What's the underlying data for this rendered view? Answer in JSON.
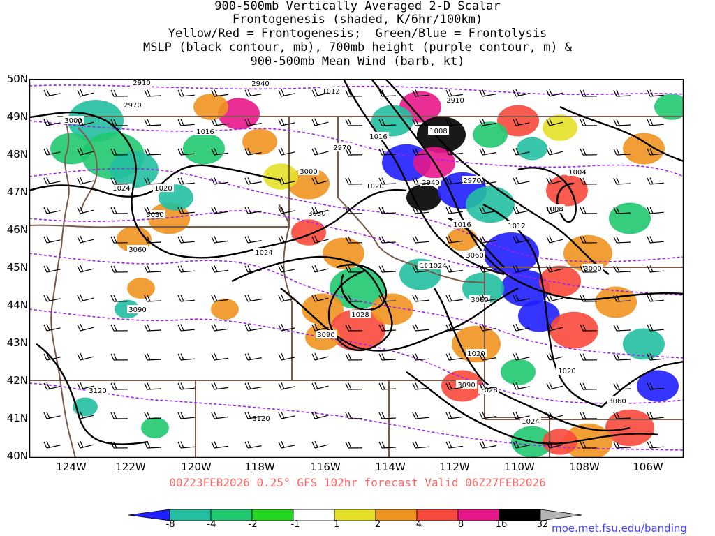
{
  "title": {
    "line1": "900-500mb Vertically Averaged 2-D Scalar",
    "line2": "Frontogenesis (shaded, K/6hr/100km)",
    "line3": "Yellow/Red = Frontogenesis;  Green/Blue = Frontolysis",
    "line4": "MSLP (black contour, mb), 700mb height (purple contour, m) &",
    "line5": "900-500mb Mean Wind (barb, kt)"
  },
  "footer": "00Z23FEB2026 0.25° GFS 102hr forecast Valid 06Z27FEB2026",
  "site": "moe.met.fsu.edu/banding",
  "lat_labels": [
    "50N",
    "49N",
    "48N",
    "47N",
    "46N",
    "45N",
    "44N",
    "43N",
    "42N",
    "41N",
    "40N"
  ],
  "lon_labels": [
    "124W",
    "122W",
    "120W",
    "118W",
    "116W",
    "114W",
    "112W",
    "110W",
    "108W",
    "106W"
  ],
  "colorbar": {
    "labels": [
      "-8",
      "-4",
      "-2",
      "-1",
      "1",
      "2",
      "4",
      "8",
      "16",
      "32"
    ],
    "colors": [
      "#1f1fff",
      "#23bfa0",
      "#20c870",
      "#22d622",
      "#ffffff",
      "#e4e028",
      "#ef9320",
      "#f84a3c",
      "#e8178a",
      "#000000",
      "#b4b4b4"
    ]
  },
  "colors": {
    "mslp": "#000000",
    "height700": "#a020f0",
    "border": "#7a5a4a",
    "footer": "#ff6666",
    "site": "#4040ff"
  },
  "mslp_labels": [
    "1012",
    "1008",
    "1016",
    "1020",
    "1024",
    "1028",
    "1020",
    "1024",
    "1016",
    "1012",
    "1004",
    "1008",
    "1024",
    "1020",
    "1028",
    "1024",
    "1020",
    "1016",
    "1024"
  ],
  "height_labels": [
    "2910",
    "2940",
    "2970",
    "3000",
    "2910",
    "2970",
    "3000",
    "3030",
    "2940",
    "2970",
    "3030",
    "3060",
    "3000",
    "3060",
    "3090",
    "3060",
    "3090",
    "3120",
    "3120",
    "3090",
    "3060"
  ]
}
